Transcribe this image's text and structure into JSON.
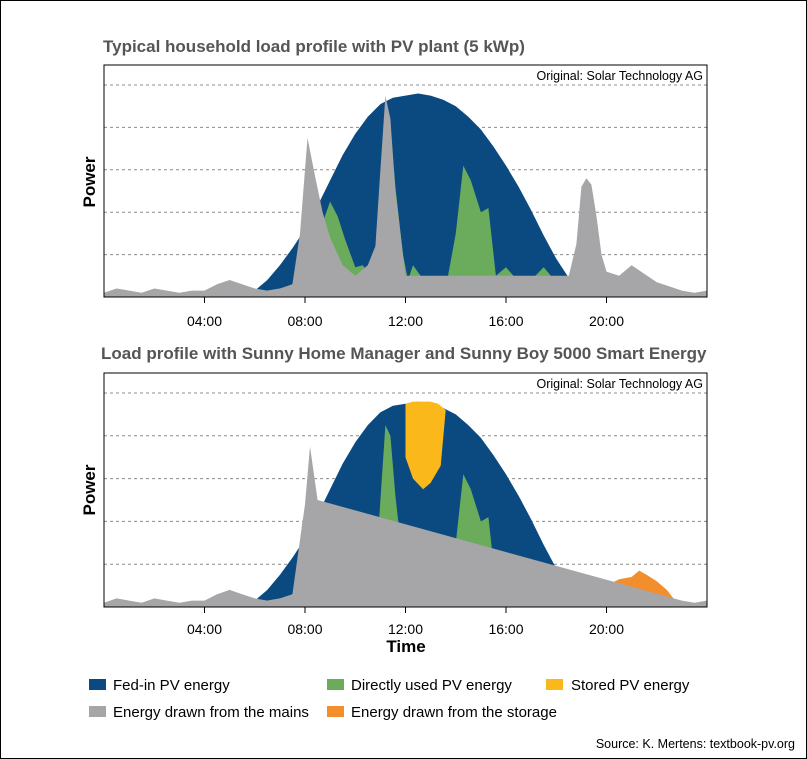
{
  "chart_data": [
    {
      "type": "area",
      "title": "Typical household load profile with PV plant (5 kWp)",
      "annotation": "Original: Solar Technology AG",
      "ylabel": "Power",
      "xlabel": "",
      "xlim": [
        0,
        24
      ],
      "ylim": [
        0,
        100
      ],
      "x_ticks": [
        "04:00",
        "08:00",
        "12:00",
        "16:00",
        "20:00"
      ],
      "x_tick_values": [
        4,
        8,
        12,
        16,
        20
      ],
      "grid": true,
      "series": [
        {
          "name": "Fed-in PV energy",
          "key": "pv",
          "color": "#0b4a80",
          "x": [
            5.5,
            6,
            6.5,
            7,
            7.5,
            8,
            8.5,
            9,
            9.5,
            10,
            10.5,
            11,
            11.5,
            12,
            12.5,
            13,
            13.5,
            14,
            14.5,
            15,
            15.5,
            16,
            16.5,
            17,
            17.5,
            18,
            18.5,
            19,
            19.5
          ],
          "y": [
            0,
            3,
            8,
            15,
            23,
            32,
            43,
            55,
            67,
            77,
            85,
            91,
            94,
            95,
            96,
            95,
            93,
            90,
            85,
            79,
            71,
            62,
            52,
            41,
            29,
            18,
            9,
            3,
            0
          ]
        },
        {
          "name": "Directly used PV energy",
          "key": "direct",
          "color": "#6aac5c",
          "x": [
            5,
            6,
            6.5,
            7,
            7.5,
            7.8,
            8,
            8.3,
            8.7,
            9,
            9.3,
            9.6,
            10,
            10.3,
            10.6,
            10.8,
            11,
            11.2,
            11.4,
            11.6,
            11.9,
            12.1,
            12.3,
            12.6,
            13,
            13.3,
            13.6,
            14,
            14.3,
            14.6,
            15,
            15.3,
            15.6,
            16,
            16.3,
            16.6,
            17,
            17.5,
            18,
            18.5,
            19,
            19.5,
            20
          ],
          "y": [
            0,
            2,
            3,
            4,
            5,
            7,
            25,
            30,
            35,
            45,
            38,
            27,
            14,
            15,
            10,
            13,
            50,
            85,
            80,
            52,
            20,
            8,
            15,
            10,
            8,
            5,
            4,
            30,
            62,
            55,
            40,
            42,
            10,
            14,
            10,
            6,
            8,
            14,
            7,
            3,
            2,
            2,
            0
          ]
        },
        {
          "name": "Energy drawn from the mains",
          "key": "mains",
          "color": "#a6a6a8",
          "x": [
            0,
            0.5,
            1,
            1.5,
            2,
            2.5,
            3,
            3.5,
            4,
            4.5,
            5,
            5.5,
            6,
            6.5,
            7,
            7.5,
            7.8,
            8.1,
            8.4,
            8.7,
            9,
            9.5,
            10,
            10.5,
            10.8,
            11,
            11.2,
            11.4,
            11.6,
            12,
            18.5,
            18.8,
            19,
            19.2,
            19.4,
            19.6,
            19.8,
            20,
            20.5,
            21,
            21.5,
            22,
            22.5,
            23,
            23.5,
            24
          ],
          "y": [
            2,
            4,
            3,
            2,
            4,
            3,
            2,
            3,
            3,
            6,
            8,
            6,
            4,
            3,
            4,
            6,
            30,
            75,
            57,
            40,
            28,
            15,
            10,
            15,
            24,
            60,
            95,
            84,
            50,
            10,
            10,
            25,
            52,
            56,
            53,
            38,
            20,
            12,
            10,
            15,
            11,
            7,
            5,
            3,
            2,
            3
          ]
        }
      ]
    },
    {
      "type": "area",
      "title": "Load profile with Sunny Home Manager and Sunny Boy 5000 Smart Energy",
      "annotation": "Original: Solar Technology AG",
      "ylabel": "Power",
      "xlabel": "Time",
      "xlim": [
        0,
        24
      ],
      "ylim": [
        0,
        100
      ],
      "x_ticks": [
        "04:00",
        "08:00",
        "12:00",
        "16:00",
        "20:00"
      ],
      "x_tick_values": [
        4,
        8,
        12,
        16,
        20
      ],
      "grid": true,
      "series": [
        {
          "name": "Fed-in PV energy",
          "key": "pv",
          "color": "#0b4a80",
          "x": [
            5.5,
            6,
            6.5,
            7,
            7.5,
            8,
            8.5,
            9,
            9.5,
            10,
            10.5,
            11,
            11.5,
            12,
            12.5,
            13,
            13.5,
            14,
            14.5,
            15,
            15.5,
            16,
            16.5,
            17,
            17.5,
            18,
            18.5,
            19,
            19.5
          ],
          "y": [
            0,
            3,
            8,
            15,
            23,
            32,
            43,
            55,
            67,
            77,
            85,
            91,
            94,
            95,
            96,
            95,
            93,
            90,
            85,
            79,
            71,
            62,
            52,
            41,
            29,
            18,
            9,
            3,
            0
          ]
        },
        {
          "name": "Stored PV energy",
          "key": "stored",
          "color": "#fbb81b",
          "x": [
            12.0,
            12.3,
            12.7,
            13.0,
            13.3,
            13.6,
            13.4,
            13.0,
            12.7,
            12.3,
            12.0
          ],
          "y": [
            95,
            96,
            96,
            96,
            95,
            92,
            66,
            58,
            55,
            60,
            70
          ]
        },
        {
          "name": "Directly used PV energy",
          "key": "direct",
          "color": "#6aac5c",
          "x": [
            5,
            6,
            6.5,
            7,
            7.5,
            7.8,
            8,
            8.3,
            8.7,
            9,
            9.3,
            9.6,
            10,
            10.3,
            10.6,
            10.8,
            11,
            11.2,
            11.4,
            11.6,
            11.9,
            12.1,
            12.3,
            12.6,
            13,
            13.3,
            13.6,
            14,
            14.3,
            14.6,
            15,
            15.3,
            15.6,
            16,
            16.3,
            16.6,
            17,
            17.5,
            18,
            18.5,
            19,
            19.5,
            20
          ],
          "y": [
            0,
            2,
            3,
            4,
            5,
            7,
            25,
            30,
            35,
            45,
            38,
            27,
            14,
            15,
            10,
            13,
            50,
            85,
            80,
            52,
            20,
            8,
            15,
            10,
            8,
            5,
            4,
            30,
            62,
            55,
            40,
            42,
            10,
            14,
            10,
            6,
            8,
            14,
            7,
            3,
            2,
            2,
            0
          ]
        },
        {
          "name": "Energy drawn from the storage",
          "key": "storage",
          "color": "#f28e2b",
          "x": [
            7.6,
            7.9,
            8.1,
            8.3,
            8.5,
            8.7,
            18.4,
            18.7,
            19,
            19.5,
            20,
            20.5,
            21,
            21.3,
            21.6,
            22,
            22.4,
            22.8,
            23
          ],
          "y": [
            10,
            40,
            48,
            45,
            33,
            30,
            8,
            10,
            9,
            8,
            10,
            13,
            14,
            17,
            15,
            12,
            8,
            2,
            0
          ]
        },
        {
          "name": "Energy drawn from the mains",
          "key": "mains",
          "color": "#a6a6a8",
          "x": [
            0,
            0.5,
            1,
            1.5,
            2,
            2.5,
            3,
            3.5,
            4,
            4.5,
            5,
            5.5,
            6,
            6.5,
            7,
            7.5,
            8,
            8.2,
            8.5,
            23,
            23.5,
            24
          ],
          "y": [
            2,
            4,
            3,
            2,
            4,
            3,
            2,
            3,
            3,
            6,
            8,
            6,
            4,
            3,
            4,
            6,
            48,
            75,
            50,
            3,
            2,
            3
          ]
        }
      ]
    }
  ],
  "legend": {
    "items": [
      {
        "label": "Fed-in PV energy",
        "color": "#0b4a80"
      },
      {
        "label": "Directly used PV energy",
        "color": "#6aac5c"
      },
      {
        "label": "Stored PV energy",
        "color": "#fbb81b"
      },
      {
        "label": "Energy drawn from the mains",
        "color": "#a6a6a8"
      },
      {
        "label": "Energy drawn from the storage",
        "color": "#f28e2b"
      }
    ]
  },
  "source": "Source: K. Mertens: textbook-pv.org"
}
